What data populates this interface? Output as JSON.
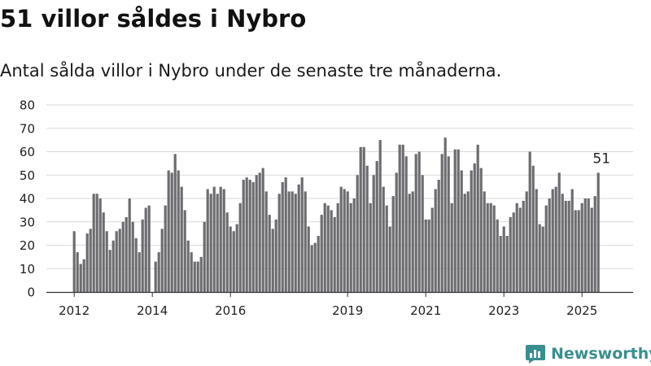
{
  "title": "51 villor såldes i Nybro",
  "subtitle": "Antal sålda villor i Nybro under de senaste tre månaderna.",
  "brand": {
    "name": "Newsworthy",
    "icon": "newsworthy-logo-icon"
  },
  "colors": {
    "bar": "#6d6c70",
    "highlight": "#1a9a96",
    "grid": "#d9d9d9",
    "brand": "#3a8f8f"
  },
  "chart_data": {
    "type": "bar",
    "title": "51 villor såldes i Nybro",
    "subtitle": "Antal sålda villor i Nybro under de senaste tre månaderna.",
    "xlabel": "",
    "ylabel": "",
    "ylim": [
      0,
      80
    ],
    "yticks": [
      0,
      10,
      20,
      30,
      40,
      50,
      60,
      70,
      80
    ],
    "grid": true,
    "x_start": "2012-01",
    "x_step": "month",
    "xticks": [
      {
        "label": "2012",
        "index": 0
      },
      {
        "label": "2014",
        "index": 24
      },
      {
        "label": "2016",
        "index": 48
      },
      {
        "label": "2019",
        "index": 84
      },
      {
        "label": "2021",
        "index": 108
      },
      {
        "label": "2023",
        "index": 132
      },
      {
        "label": "2025",
        "index": 156
      }
    ],
    "highlight": {
      "index": 162,
      "value": 51,
      "label": "51"
    },
    "values": [
      26,
      17,
      12,
      14,
      25,
      27,
      42,
      42,
      40,
      34,
      26,
      18,
      22,
      26,
      27,
      30,
      32,
      40,
      30,
      23,
      17,
      31,
      36,
      37,
      0,
      13,
      17,
      27,
      37,
      52,
      51,
      59,
      52,
      45,
      35,
      22,
      17,
      13,
      13,
      15,
      30,
      44,
      42,
      45,
      42,
      45,
      44,
      34,
      28,
      26,
      29,
      38,
      48,
      49,
      48,
      47,
      50,
      51,
      53,
      43,
      33,
      27,
      31,
      42,
      47,
      49,
      43,
      43,
      42,
      46,
      49,
      43,
      28,
      20,
      21,
      24,
      33,
      38,
      37,
      35,
      32,
      38,
      45,
      44,
      43,
      38,
      40,
      50,
      62,
      62,
      54,
      38,
      50,
      56,
      65,
      45,
      37,
      28,
      41,
      51,
      63,
      63,
      58,
      42,
      43,
      59,
      60,
      50,
      31,
      31,
      36,
      44,
      48,
      59,
      66,
      58,
      38,
      61,
      61,
      52,
      42,
      43,
      52,
      55,
      63,
      53,
      43,
      38,
      38,
      37,
      31,
      24,
      28,
      24,
      32,
      34,
      38,
      36,
      39,
      43,
      60,
      54,
      44,
      29,
      28,
      37,
      40,
      44,
      45,
      51,
      42,
      39,
      39,
      44,
      35,
      35,
      38,
      40,
      40,
      36,
      41,
      51
    ]
  }
}
